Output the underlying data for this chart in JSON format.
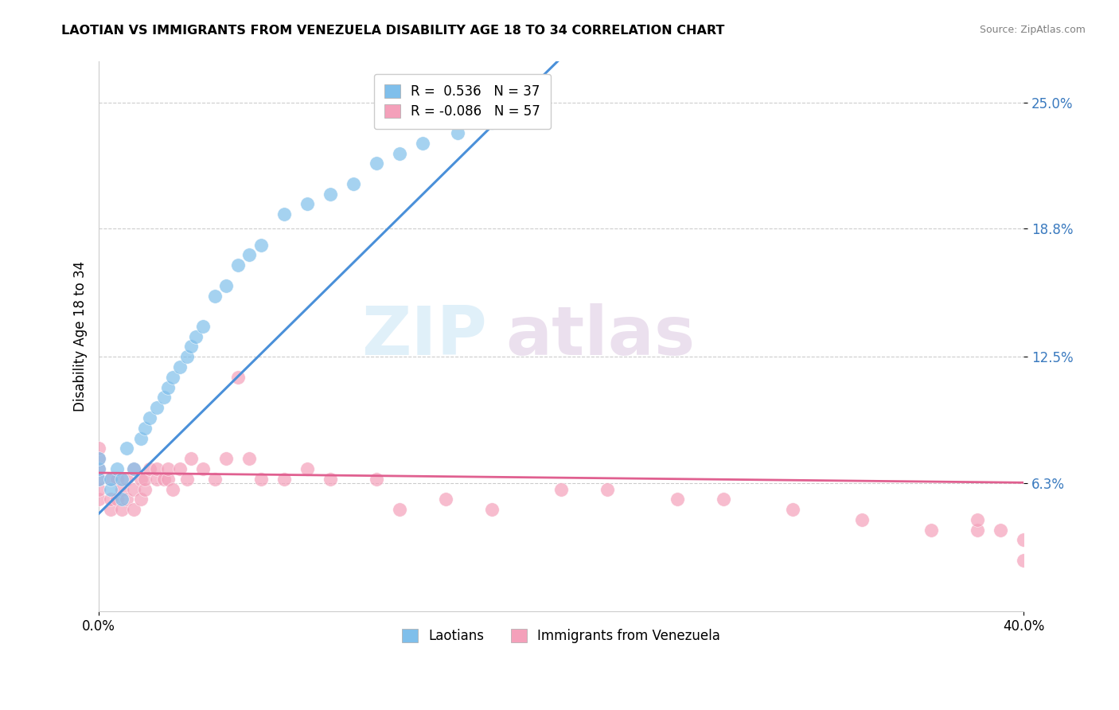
{
  "title": "LAOTIAN VS IMMIGRANTS FROM VENEZUELA DISABILITY AGE 18 TO 34 CORRELATION CHART",
  "source": "Source: ZipAtlas.com",
  "ylabel": "Disability Age 18 to 34",
  "x_min": 0.0,
  "x_max": 0.4,
  "y_min": 0.0,
  "y_max": 0.27,
  "y_ticks": [
    0.063,
    0.125,
    0.188,
    0.25
  ],
  "y_tick_labels": [
    "6.3%",
    "12.5%",
    "18.8%",
    "25.0%"
  ],
  "legend_r1": "R =  0.536",
  "legend_n1": "N = 37",
  "legend_r2": "R = -0.086",
  "legend_n2": "N = 57",
  "color_blue": "#7fbfeb",
  "color_pink": "#f4a0ba",
  "color_blue_line": "#4a90d9",
  "color_pink_line": "#e06090",
  "laotian_x": [
    0.0,
    0.0,
    0.0,
    0.005,
    0.005,
    0.008,
    0.01,
    0.01,
    0.012,
    0.015,
    0.018,
    0.02,
    0.022,
    0.025,
    0.028,
    0.03,
    0.032,
    0.035,
    0.038,
    0.04,
    0.042,
    0.045,
    0.05,
    0.055,
    0.06,
    0.065,
    0.07,
    0.08,
    0.09,
    0.1,
    0.11,
    0.12,
    0.13,
    0.14,
    0.155,
    0.17,
    0.19
  ],
  "laotian_y": [
    0.065,
    0.07,
    0.075,
    0.06,
    0.065,
    0.07,
    0.055,
    0.065,
    0.08,
    0.07,
    0.085,
    0.09,
    0.095,
    0.1,
    0.105,
    0.11,
    0.115,
    0.12,
    0.125,
    0.13,
    0.135,
    0.14,
    0.155,
    0.16,
    0.17,
    0.175,
    0.18,
    0.195,
    0.2,
    0.205,
    0.21,
    0.22,
    0.225,
    0.23,
    0.235,
    0.24,
    0.245
  ],
  "venezuela_x": [
    0.0,
    0.0,
    0.0,
    0.0,
    0.0,
    0.0,
    0.005,
    0.005,
    0.005,
    0.008,
    0.008,
    0.01,
    0.01,
    0.012,
    0.012,
    0.015,
    0.015,
    0.015,
    0.018,
    0.018,
    0.02,
    0.02,
    0.022,
    0.025,
    0.025,
    0.028,
    0.03,
    0.03,
    0.032,
    0.035,
    0.038,
    0.04,
    0.045,
    0.05,
    0.055,
    0.06,
    0.065,
    0.07,
    0.08,
    0.09,
    0.1,
    0.12,
    0.13,
    0.15,
    0.17,
    0.2,
    0.22,
    0.25,
    0.27,
    0.3,
    0.33,
    0.36,
    0.38,
    0.38,
    0.39,
    0.4,
    0.4
  ],
  "venezuela_y": [
    0.055,
    0.06,
    0.065,
    0.07,
    0.075,
    0.08,
    0.05,
    0.055,
    0.065,
    0.055,
    0.065,
    0.05,
    0.06,
    0.055,
    0.065,
    0.05,
    0.06,
    0.07,
    0.055,
    0.065,
    0.06,
    0.065,
    0.07,
    0.065,
    0.07,
    0.065,
    0.065,
    0.07,
    0.06,
    0.07,
    0.065,
    0.075,
    0.07,
    0.065,
    0.075,
    0.115,
    0.075,
    0.065,
    0.065,
    0.07,
    0.065,
    0.065,
    0.05,
    0.055,
    0.05,
    0.06,
    0.06,
    0.055,
    0.055,
    0.05,
    0.045,
    0.04,
    0.04,
    0.045,
    0.04,
    0.035,
    0.025
  ],
  "blue_line_x": [
    0.0,
    0.42
  ],
  "blue_line_y_intercept": 0.048,
  "blue_line_slope": 1.12,
  "pink_line_x": [
    0.0,
    0.4
  ],
  "pink_line_y_intercept": 0.068,
  "pink_line_slope": -0.012
}
